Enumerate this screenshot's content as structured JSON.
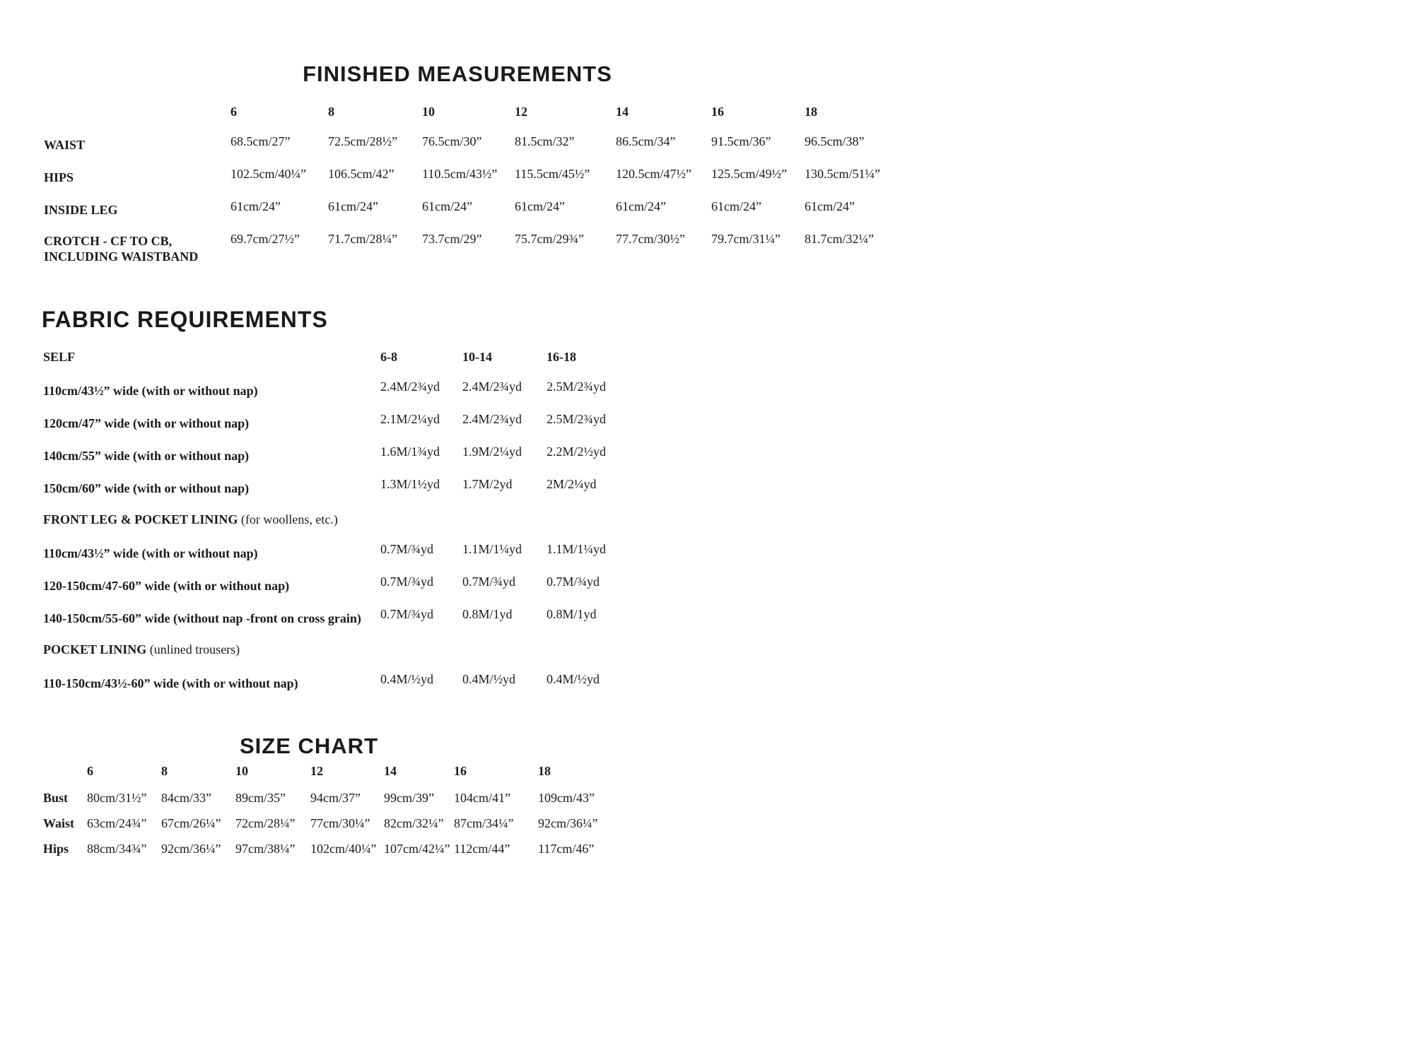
{
  "finished": {
    "title": "FINISHED MEASUREMENTS",
    "sizes": [
      "6",
      "8",
      "10",
      "12",
      "14",
      "16",
      "18"
    ],
    "rows": [
      {
        "label": "WAIST",
        "values": [
          "68.5cm/27”",
          "72.5cm/28½”",
          "76.5cm/30”",
          "81.5cm/32”",
          "86.5cm/34”",
          "91.5cm/36”",
          "96.5cm/38”"
        ]
      },
      {
        "label": "HIPS",
        "values": [
          "102.5cm/40¼”",
          "106.5cm/42”",
          "110.5cm/43½”",
          "115.5cm/45½”",
          "120.5cm/47½”",
          "125.5cm/49½”",
          "130.5cm/51¼”"
        ]
      },
      {
        "label": "INSIDE LEG",
        "values": [
          "61cm/24”",
          "61cm/24”",
          "61cm/24”",
          "61cm/24”",
          "61cm/24”",
          "61cm/24”",
          "61cm/24”"
        ]
      },
      {
        "label": "CROTCH - CF TO CB,",
        "label2": "INCLUDING WAISTBAND",
        "values": [
          "69.7cm/27½”",
          "71.7cm/28¼”",
          "73.7cm/29”",
          "75.7cm/29¾”",
          "77.7cm/30½”",
          "79.7cm/31¼”",
          "81.7cm/32¼”"
        ]
      }
    ]
  },
  "fabric": {
    "title": "FABRIC REQUIREMENTS",
    "self_label": "SELF",
    "size_groups": [
      "6-8",
      "10-14",
      "16-18"
    ],
    "rows": [
      {
        "type": "row",
        "label": "110cm/43½” wide (with or without nap)",
        "values": [
          "2.4M/2¾yd",
          "2.4M/2¾yd",
          "2.5M/2¾yd"
        ]
      },
      {
        "type": "row",
        "label": "120cm/47” wide (with or without nap)",
        "values": [
          "2.1M/2¼yd",
          "2.4M/2¾yd",
          "2.5M/2¾yd"
        ]
      },
      {
        "type": "row",
        "label": "140cm/55” wide (with or without nap)",
        "values": [
          "1.6M/1¾yd",
          "1.9M/2¼yd",
          "2.2M/2½yd"
        ]
      },
      {
        "type": "row",
        "label": "150cm/60” wide (with or without nap)",
        "values": [
          "1.3M/1½yd",
          "1.7M/2yd",
          "2M/2¼yd"
        ]
      },
      {
        "type": "section",
        "label": "FRONT LEG & POCKET LINING",
        "note": "(for woollens, etc.)"
      },
      {
        "type": "row",
        "label": "110cm/43½” wide (with or without nap)",
        "values": [
          "0.7M/¾yd",
          "1.1M/1¼yd",
          "1.1M/1¼yd"
        ]
      },
      {
        "type": "row",
        "label": "120-150cm/47-60” wide (with or without nap)",
        "values": [
          "0.7M/¾yd",
          "0.7M/¾yd",
          "0.7M/¾yd"
        ]
      },
      {
        "type": "row",
        "label": "140-150cm/55-60” wide (without nap -front on cross grain)",
        "values": [
          "0.7M/¾yd",
          "0.8M/1yd",
          "0.8M/1yd"
        ]
      },
      {
        "type": "section",
        "label": "POCKET LINING",
        "note": "(unlined trousers)"
      },
      {
        "type": "row",
        "label": "110-150cm/43½-60” wide (with or without nap)",
        "values": [
          "0.4M/½yd",
          "0.4M/½yd",
          "0.4M/½yd"
        ]
      }
    ]
  },
  "size_chart": {
    "title": "SIZE CHART",
    "sizes": [
      "6",
      "8",
      "10",
      "12",
      "14",
      "16",
      "18"
    ],
    "rows": [
      {
        "label": "Bust",
        "values": [
          "80cm/31½”",
          "84cm/33”",
          "89cm/35”",
          "94cm/37”",
          "99cm/39”",
          "104cm/41”",
          "109cm/43”"
        ]
      },
      {
        "label": "Waist",
        "values": [
          "63cm/24¾”",
          "67cm/26¼”",
          "72cm/28¼”",
          "77cm/30¼”",
          "82cm/32¼”",
          "87cm/34¼”",
          "92cm/36¼”"
        ]
      },
      {
        "label": "Hips",
        "values": [
          "88cm/34¾”",
          "92cm/36¼”",
          "97cm/38¼”",
          "102cm/40¼”",
          "107cm/42¼”",
          "112cm/44”",
          "117cm/46”"
        ]
      }
    ]
  }
}
